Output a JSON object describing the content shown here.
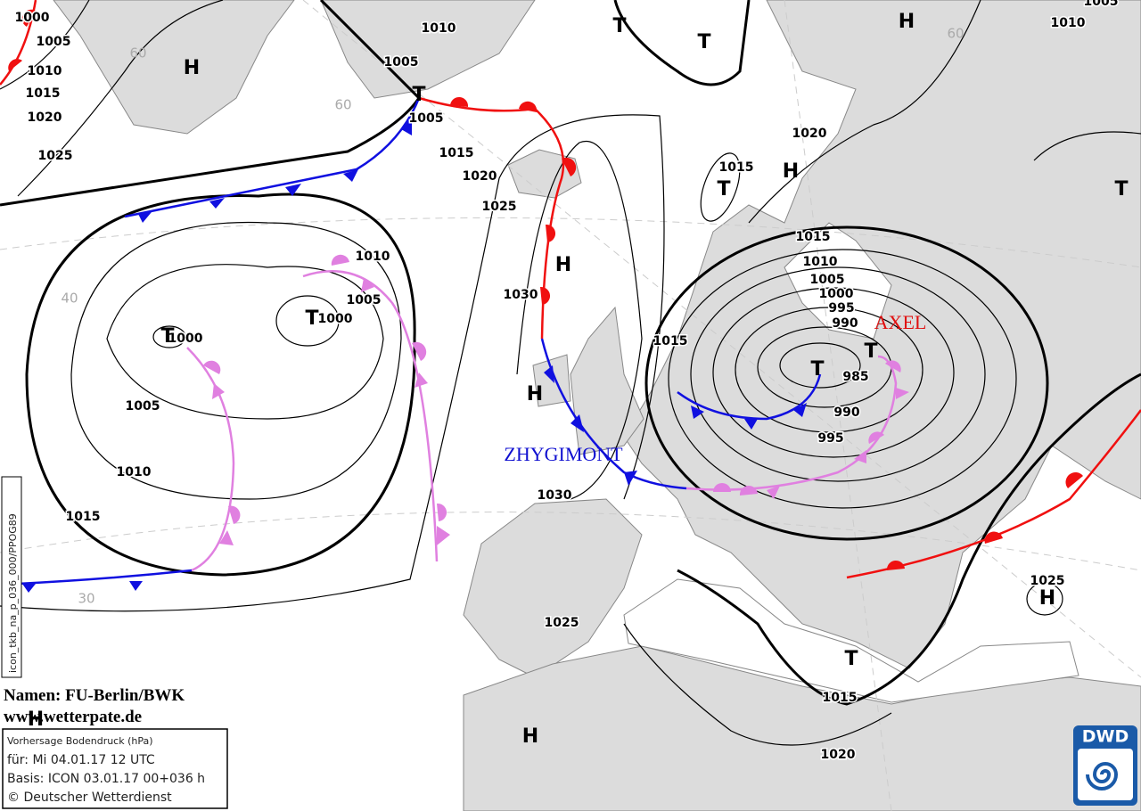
{
  "map": {
    "isobar_labels": [
      "1000",
      "1005",
      "1010",
      "1015",
      "1020",
      "1025",
      "1010",
      "1005",
      "1005",
      "1015",
      "1020",
      "1025",
      "1010",
      "1005",
      "1000",
      "1000",
      "1005",
      "1010",
      "1015",
      "1030",
      "1030",
      "1025",
      "1015",
      "1015",
      "1020",
      "1015",
      "1010",
      "1005",
      "1000",
      "995",
      "990",
      "985",
      "990",
      "995",
      "1015",
      "1020",
      "1025",
      "1010",
      "1005"
    ],
    "pressure_centers": [
      "H",
      "T",
      "T",
      "H",
      "T",
      "H",
      "T",
      "T",
      "H",
      "T",
      "T",
      "T",
      "T",
      "H",
      "T",
      "H",
      "H",
      "H"
    ],
    "storm_names": [
      "AXEL",
      "ZHYGIMONT"
    ],
    "grid_labels": [
      "60",
      "60",
      "40",
      "30",
      "60"
    ],
    "credits": {
      "names": "Namen: FU-Berlin/BWK",
      "website": "www.wetterpate.de"
    },
    "info_box": {
      "product": "Vorhersage Bodendruck (hPa)",
      "valid": "für:  Mi 04.01.17  12 UTC",
      "base": "Basis: ICON  03.01.17 00+036 h",
      "copyright": "© Deutscher Wetterdienst"
    },
    "run_id": "icon_tkb_na_p_036_000/PPOG89",
    "logo": "DWD"
  }
}
